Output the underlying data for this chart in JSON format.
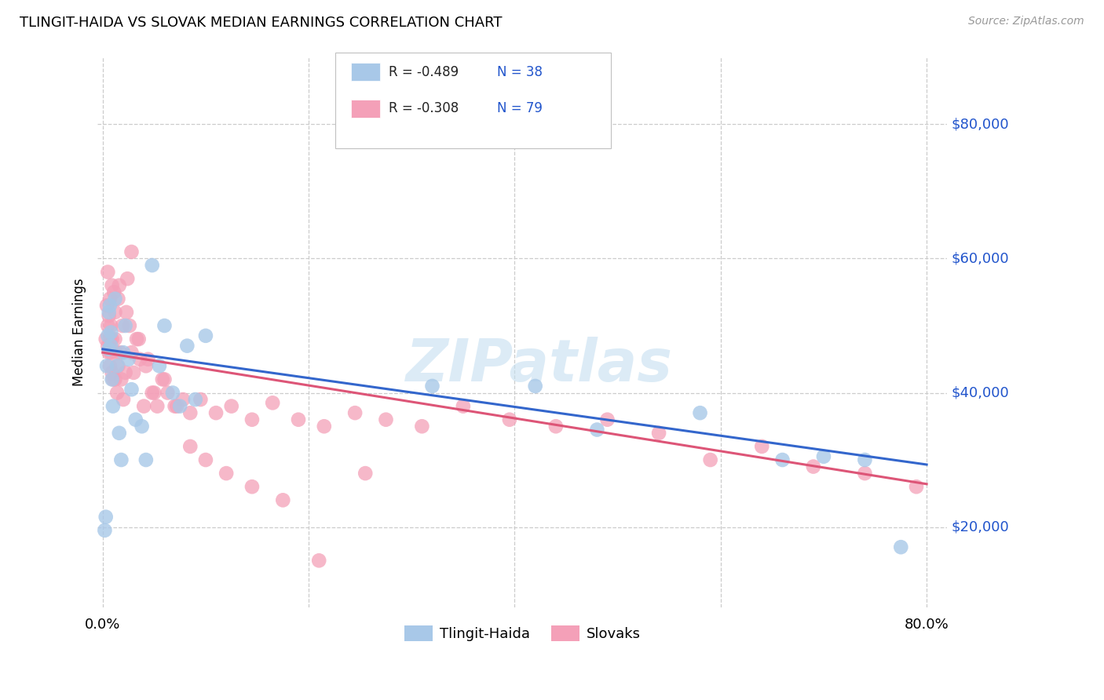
{
  "title": "TLINGIT-HAIDA VS SLOVAK MEDIAN EARNINGS CORRELATION CHART",
  "source": "Source: ZipAtlas.com",
  "ylabel": "Median Earnings",
  "y_ticks": [
    20000,
    40000,
    60000,
    80000
  ],
  "y_tick_labels": [
    "$20,000",
    "$40,000",
    "$60,000",
    "$80,000"
  ],
  "legend_blue_label": "Tlingit-Haida",
  "legend_pink_label": "Slovaks",
  "blue_color": "#a8c8e8",
  "pink_color": "#f4a0b8",
  "blue_line_color": "#3366cc",
  "pink_line_color": "#dd5577",
  "trendline_blue_intercept": 46500,
  "trendline_blue_slope": -21500,
  "trendline_pink_intercept": 46000,
  "trendline_pink_slope": -24500,
  "blue_x": [
    0.002,
    0.003,
    0.004,
    0.005,
    0.006,
    0.006,
    0.007,
    0.008,
    0.008,
    0.009,
    0.01,
    0.012,
    0.014,
    0.016,
    0.018,
    0.02,
    0.022,
    0.025,
    0.028,
    0.032,
    0.038,
    0.042,
    0.048,
    0.055,
    0.06,
    0.068,
    0.075,
    0.082,
    0.09,
    0.1,
    0.32,
    0.42,
    0.48,
    0.58,
    0.66,
    0.7,
    0.74,
    0.775
  ],
  "blue_y": [
    19500,
    21500,
    44000,
    48500,
    52000,
    46500,
    53000,
    49000,
    47000,
    42000,
    38000,
    54000,
    44000,
    34000,
    30000,
    46000,
    50000,
    45000,
    40500,
    36000,
    35000,
    30000,
    59000,
    44000,
    50000,
    40000,
    38000,
    47000,
    39000,
    48500,
    41000,
    41000,
    34500,
    37000,
    30000,
    30500,
    30000,
    17000
  ],
  "pink_x": [
    0.003,
    0.004,
    0.005,
    0.005,
    0.006,
    0.006,
    0.007,
    0.007,
    0.008,
    0.008,
    0.009,
    0.009,
    0.01,
    0.011,
    0.012,
    0.012,
    0.013,
    0.014,
    0.015,
    0.016,
    0.017,
    0.018,
    0.02,
    0.022,
    0.024,
    0.026,
    0.028,
    0.03,
    0.033,
    0.036,
    0.04,
    0.044,
    0.048,
    0.053,
    0.058,
    0.063,
    0.07,
    0.078,
    0.085,
    0.095,
    0.11,
    0.125,
    0.145,
    0.165,
    0.19,
    0.215,
    0.245,
    0.275,
    0.31,
    0.35,
    0.395,
    0.44,
    0.49,
    0.54,
    0.59,
    0.64,
    0.69,
    0.74,
    0.79,
    0.005,
    0.007,
    0.009,
    0.012,
    0.015,
    0.019,
    0.023,
    0.028,
    0.035,
    0.042,
    0.05,
    0.06,
    0.072,
    0.085,
    0.1,
    0.12,
    0.145,
    0.175,
    0.21,
    0.255
  ],
  "pink_y": [
    48000,
    53000,
    50000,
    47000,
    46000,
    51500,
    48000,
    44000,
    50000,
    46000,
    43000,
    48000,
    42000,
    55000,
    48000,
    42000,
    46000,
    40000,
    44000,
    56000,
    46000,
    42000,
    39000,
    43000,
    57000,
    50000,
    61000,
    43000,
    48000,
    45000,
    38000,
    45000,
    40000,
    38000,
    42000,
    40000,
    38000,
    39000,
    37000,
    39000,
    37000,
    38000,
    36000,
    38500,
    36000,
    35000,
    37000,
    36000,
    35000,
    38000,
    36000,
    35000,
    36000,
    34000,
    30000,
    32000,
    29000,
    28000,
    26000,
    58000,
    54000,
    56000,
    52000,
    54000,
    50000,
    52000,
    46000,
    48000,
    44000,
    40000,
    42000,
    38000,
    32000,
    30000,
    28000,
    26000,
    24000,
    15000,
    28000
  ]
}
